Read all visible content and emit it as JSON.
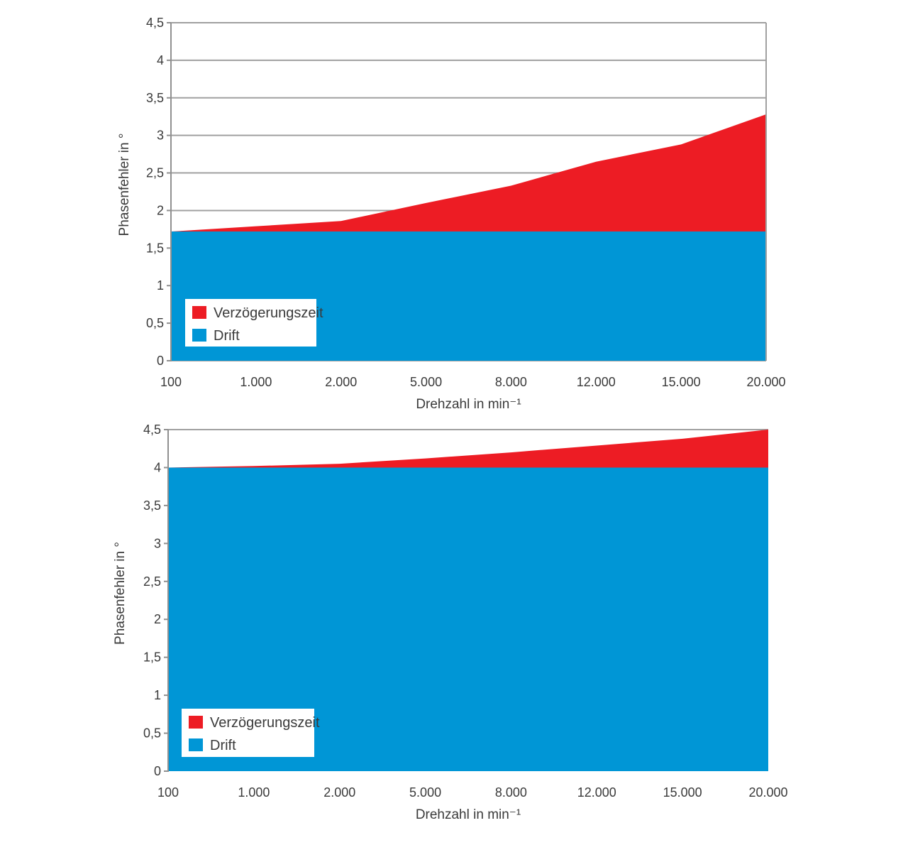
{
  "chart_data": [
    {
      "type": "area",
      "stacked": true,
      "title": "",
      "xlabel": "Drehzahl in min⁻¹",
      "ylabel": "Phasenfehler in °",
      "categories": [
        "100",
        "1.000",
        "2.000",
        "5.000",
        "8.000",
        "12.000",
        "15.000",
        "20.000"
      ],
      "ylim": [
        0,
        4.5
      ],
      "yticks": [
        "0",
        "0,5",
        "1",
        "1,5",
        "2",
        "2,5",
        "3",
        "3,5",
        "4",
        "4,5"
      ],
      "grid": true,
      "legend_position": "bottom-left",
      "series": [
        {
          "name": "Drift",
          "color": "#0096d6",
          "values": [
            1.72,
            1.72,
            1.72,
            1.72,
            1.72,
            1.72,
            1.72,
            1.72
          ]
        },
        {
          "name": "Verzögerungszeit",
          "color": "#ed1c24",
          "values": [
            0.0,
            0.07,
            0.14,
            0.38,
            0.61,
            0.93,
            1.16,
            1.56
          ]
        }
      ],
      "totals": [
        1.72,
        1.79,
        1.86,
        2.1,
        2.33,
        2.65,
        2.88,
        3.28
      ]
    },
    {
      "type": "area",
      "stacked": true,
      "title": "",
      "xlabel": "Drehzahl in min⁻¹",
      "ylabel": "Phasenfehler in °",
      "categories": [
        "100",
        "1.000",
        "2.000",
        "5.000",
        "8.000",
        "12.000",
        "15.000",
        "20.000"
      ],
      "ylim": [
        0,
        4.5
      ],
      "yticks": [
        "0",
        "0,5",
        "1",
        "1,5",
        "2",
        "2,5",
        "3",
        "3,5",
        "4",
        "4,5"
      ],
      "grid": false,
      "legend_position": "bottom-left",
      "series": [
        {
          "name": "Drift",
          "color": "#0096d6",
          "values": [
            4.0,
            4.0,
            4.0,
            4.0,
            4.0,
            4.0,
            4.0,
            4.0
          ]
        },
        {
          "name": "Verzögerungszeit",
          "color": "#ed1c24",
          "values": [
            0.0,
            0.02,
            0.05,
            0.12,
            0.2,
            0.29,
            0.38,
            0.5
          ]
        }
      ],
      "totals": [
        4.0,
        4.02,
        4.05,
        4.12,
        4.2,
        4.29,
        4.38,
        4.5
      ]
    }
  ]
}
